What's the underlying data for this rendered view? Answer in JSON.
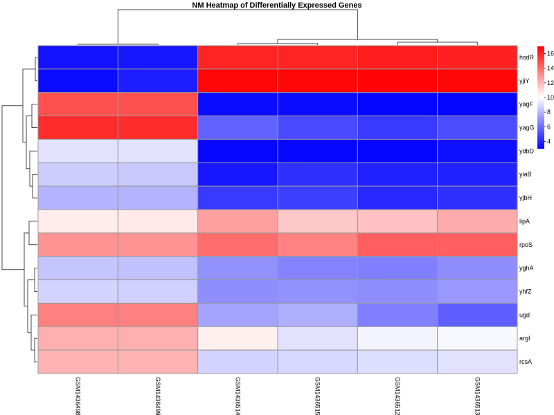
{
  "chart_data": {
    "type": "heatmap",
    "title": "NM Heatmap of Differentially Expressed Genes",
    "columns": [
      "GSM1436498",
      "GSM1436499",
      "GSM1436514",
      "GSM1436515",
      "GSM1436512",
      "GSM1436513"
    ],
    "rows": [
      "hsdR",
      "yjiY",
      "yagF",
      "yagG",
      "ydbD",
      "yiaB",
      "yjbH",
      "lipA",
      "rpoS",
      "yghA",
      "yhfZ",
      "ugd",
      "argI",
      "rcsA"
    ],
    "values": [
      [
        3.5,
        3.6,
        16.0,
        16.0,
        16.2,
        16.1
      ],
      [
        3.3,
        3.8,
        16.8,
        16.8,
        16.9,
        16.8
      ],
      [
        14.8,
        14.8,
        3.3,
        3.3,
        3.1,
        3.1
      ],
      [
        15.8,
        15.8,
        5.7,
        5.0,
        4.6,
        5.1
      ],
      [
        9.2,
        9.2,
        3.2,
        3.2,
        3.1,
        3.4
      ],
      [
        8.6,
        8.5,
        3.6,
        4.3,
        3.9,
        3.9
      ],
      [
        7.9,
        7.9,
        4.6,
        4.7,
        4.1,
        4.3
      ],
      [
        10.5,
        10.6,
        12.6,
        11.5,
        11.7,
        12.3
      ],
      [
        13.0,
        13.0,
        14.0,
        13.4,
        14.4,
        14.4
      ],
      [
        8.4,
        8.3,
        7.0,
        6.6,
        6.5,
        6.9
      ],
      [
        8.8,
        8.7,
        6.9,
        7.0,
        6.9,
        7.2
      ],
      [
        13.5,
        13.5,
        7.5,
        7.8,
        6.5,
        5.6
      ],
      [
        12.2,
        12.2,
        10.4,
        9.2,
        9.7,
        9.8
      ],
      [
        12.1,
        12.1,
        8.8,
        8.9,
        9.1,
        9.2
      ]
    ],
    "color_scale": {
      "low": "#0000ff",
      "mid": "#ffffff",
      "high": "#ff0000",
      "min": 3,
      "mid_value": 10,
      "max": 17
    },
    "legend_ticks": [
      4,
      6,
      8,
      10,
      12,
      14,
      16
    ],
    "row_dendrogram": true,
    "column_dendrogram": true,
    "cell_border_color": "#9a9a9a"
  }
}
